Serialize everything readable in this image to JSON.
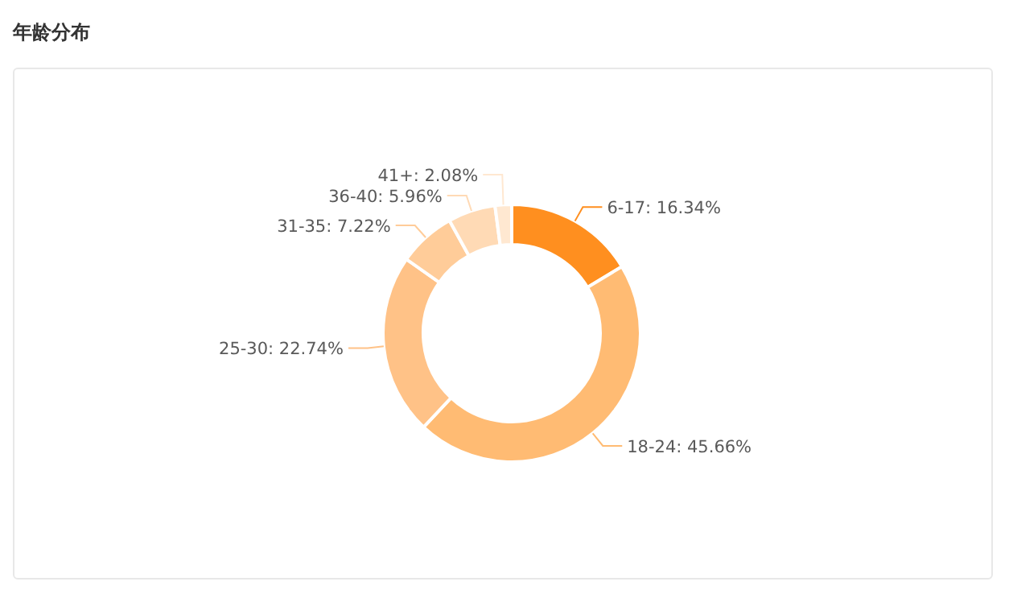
{
  "chart_data": {
    "type": "donut",
    "title": "年龄分布",
    "categories": [
      "6-17",
      "18-24",
      "25-30",
      "31-35",
      "36-40",
      "41+"
    ],
    "values": [
      16.34,
      45.66,
      22.74,
      7.22,
      5.96,
      2.08
    ],
    "value_labels": [
      "16.34%",
      "45.66%",
      "22.74%",
      "7.22%",
      "5.96%",
      "2.08%"
    ],
    "colors": [
      "#ff8f1f",
      "#ffbb73",
      "#ffc287",
      "#ffcc99",
      "#ffdab5",
      "#ffe8d1"
    ],
    "legend": false
  }
}
